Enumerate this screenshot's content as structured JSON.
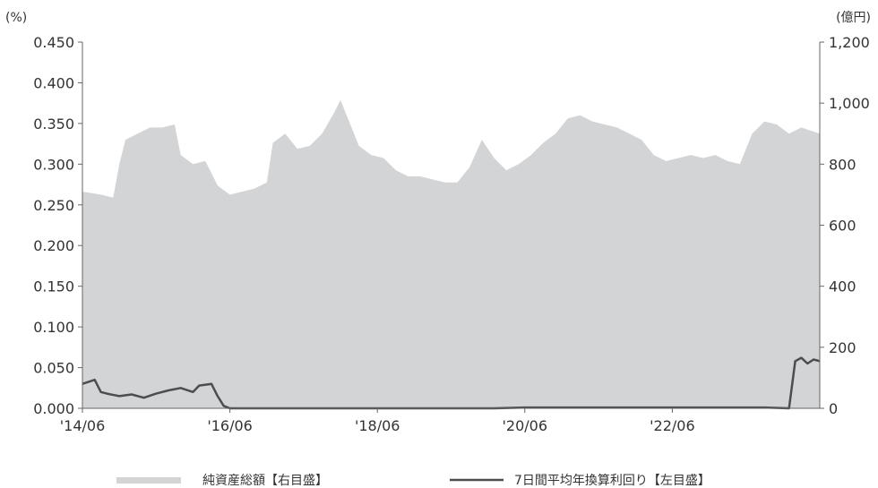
{
  "colors": {
    "area_fill": "#d3d4d6",
    "line_stroke": "#4d4d4d",
    "axis": "#666666",
    "text": "#333333"
  },
  "chart_data": {
    "type": "area",
    "title": "",
    "left_axis": {
      "unit": "(%)",
      "ylim": [
        0,
        0.45
      ],
      "ticks": [
        "0.000",
        "0.050",
        "0.100",
        "0.150",
        "0.200",
        "0.250",
        "0.300",
        "0.350",
        "0.400",
        "0.450"
      ]
    },
    "right_axis": {
      "unit": "(億円)",
      "ylim": [
        0,
        1200
      ],
      "ticks": [
        "0",
        "200",
        "400",
        "600",
        "800",
        "1,000",
        "1,200"
      ]
    },
    "x_axis": {
      "range": [
        "2014-06",
        "2024-06"
      ],
      "ticks": [
        "'14/06",
        "'16/06",
        "'18/06",
        "'20/06",
        "'22/06"
      ]
    },
    "legend": {
      "placement": "bottom",
      "items": [
        "純資産総額【右目盛】",
        "7日間平均年換算利回り【左目盛】"
      ]
    },
    "series": [
      {
        "name": "純資産総額【右目盛】",
        "type": "area",
        "axis": "right",
        "x": [
          "2014-06",
          "2014-09",
          "2014-11",
          "2014-12",
          "2015-01",
          "2015-03",
          "2015-05",
          "2015-07",
          "2015-09",
          "2015-10",
          "2015-12",
          "2016-02",
          "2016-04",
          "2016-06",
          "2016-08",
          "2016-10",
          "2016-12",
          "2017-01",
          "2017-03",
          "2017-05",
          "2017-07",
          "2017-09",
          "2017-11",
          "2017-12",
          "2018-01",
          "2018-03",
          "2018-05",
          "2018-07",
          "2018-09",
          "2018-11",
          "2019-01",
          "2019-03",
          "2019-05",
          "2019-07",
          "2019-09",
          "2019-11",
          "2020-01",
          "2020-03",
          "2020-05",
          "2020-07",
          "2020-09",
          "2020-11",
          "2021-01",
          "2021-03",
          "2021-05",
          "2021-07",
          "2021-09",
          "2021-11",
          "2022-01",
          "2022-03",
          "2022-05",
          "2022-07",
          "2022-09",
          "2022-11",
          "2023-01",
          "2023-03",
          "2023-05",
          "2023-07",
          "2023-09",
          "2023-11",
          "2024-01",
          "2024-03",
          "2024-06"
        ],
        "values": [
          710,
          700,
          690,
          800,
          880,
          900,
          920,
          920,
          930,
          830,
          800,
          810,
          730,
          700,
          710,
          720,
          740,
          870,
          900,
          850,
          860,
          900,
          970,
          1010,
          960,
          860,
          830,
          820,
          780,
          760,
          760,
          750,
          740,
          740,
          790,
          880,
          820,
          780,
          800,
          830,
          870,
          900,
          950,
          960,
          940,
          930,
          920,
          900,
          880,
          830,
          810,
          820,
          830,
          820,
          830,
          810,
          800,
          900,
          940,
          930,
          900,
          920,
          900
        ]
      },
      {
        "name": "7日間平均年換算利回り【左目盛】",
        "type": "line",
        "axis": "left",
        "x": [
          "2014-06",
          "2014-08",
          "2014-09",
          "2014-10",
          "2014-12",
          "2015-02",
          "2015-04",
          "2015-06",
          "2015-08",
          "2015-10",
          "2015-12",
          "2016-01",
          "2016-03",
          "2016-04",
          "2016-05",
          "2016-06",
          "2016-09",
          "2020-01",
          "2020-06",
          "2023-09",
          "2024-01",
          "2024-02",
          "2024-03",
          "2024-04",
          "2024-05",
          "2024-06"
        ],
        "values": [
          0.03,
          0.035,
          0.02,
          0.018,
          0.015,
          0.017,
          0.013,
          0.018,
          0.022,
          0.025,
          0.02,
          0.028,
          0.03,
          0.015,
          0.003,
          0.0,
          0.0,
          0.0,
          0.001,
          0.001,
          0.0,
          0.058,
          0.062,
          0.055,
          0.06,
          0.058
        ]
      }
    ]
  }
}
